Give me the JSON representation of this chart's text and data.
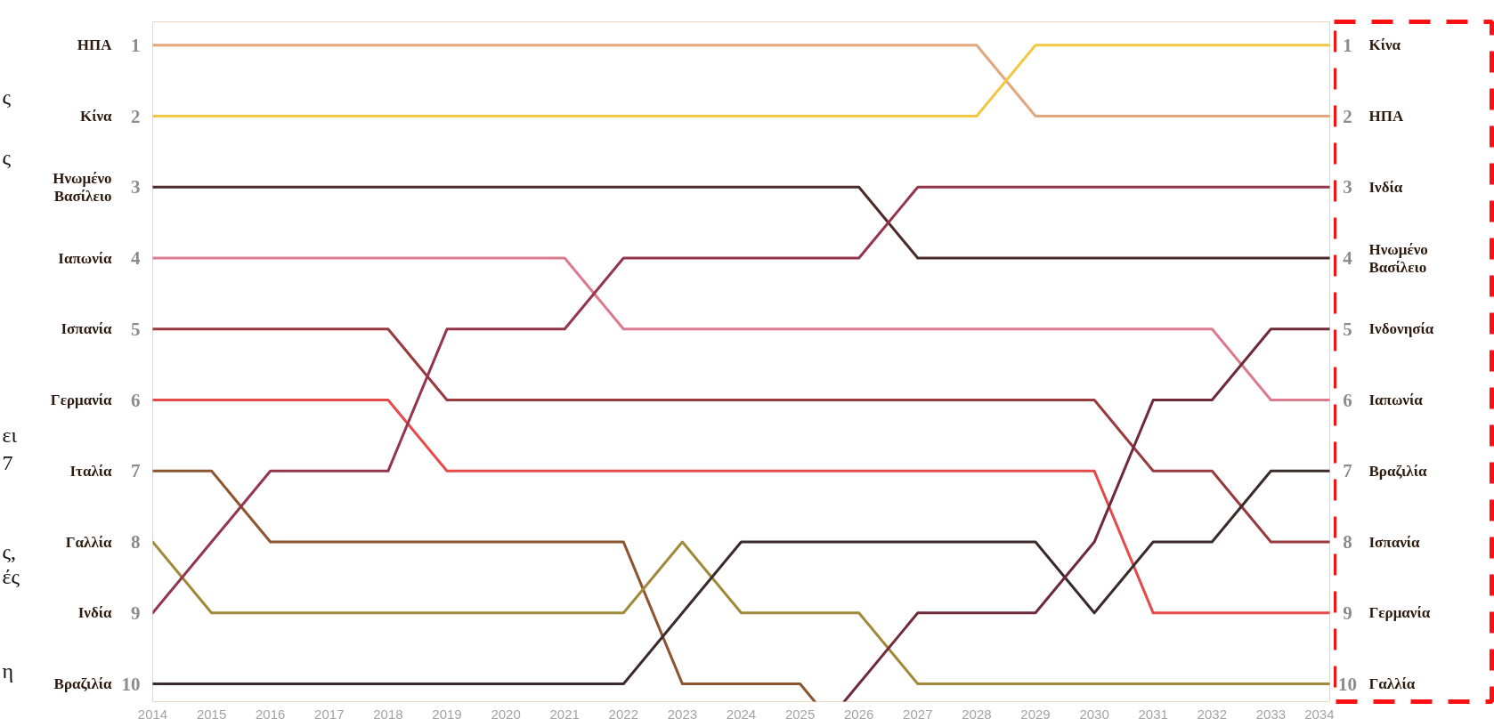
{
  "chart_data": {
    "type": "line",
    "x": [
      2014,
      2015,
      2016,
      2017,
      2018,
      2019,
      2020,
      2021,
      2022,
      2023,
      2024,
      2025,
      2026,
      2027,
      2028,
      2029,
      2030,
      2031,
      2032,
      2033,
      2034
    ],
    "xlim": [
      2014,
      2034
    ],
    "xticks": [
      2014,
      2015,
      2016,
      2017,
      2018,
      2019,
      2020,
      2021,
      2022,
      2023,
      2024,
      2025,
      2026,
      2027,
      2028,
      2029,
      2030,
      2031,
      2032,
      2033,
      2034
    ],
    "ylim": [
      10.25,
      0.67
    ],
    "yticks": [
      1,
      2,
      3,
      4,
      5,
      6,
      7,
      8,
      9,
      10
    ],
    "y2lim": [
      10.25,
      0.67
    ],
    "y2ticks": [
      1,
      2,
      3,
      4,
      5,
      6,
      7,
      8,
      9,
      10
    ],
    "line_style": "solid",
    "series": [
      {
        "name": "ΗΠΑ",
        "color": "#e3a77e",
        "values": [
          1,
          1,
          1,
          1,
          1,
          1,
          1,
          1,
          1,
          1,
          1,
          1,
          1,
          1,
          1,
          2,
          2,
          2,
          2,
          2,
          2
        ]
      },
      {
        "name": "Κίνα",
        "color": "#f2c744",
        "values": [
          2,
          2,
          2,
          2,
          2,
          2,
          2,
          2,
          2,
          2,
          2,
          2,
          2,
          2,
          2,
          1,
          1,
          1,
          1,
          1,
          1
        ]
      },
      {
        "name": "Ηνωμένο Βασίλειο",
        "color": "#4a2a2a",
        "values": [
          3,
          3,
          3,
          3,
          3,
          3,
          3,
          3,
          3,
          3,
          3,
          3,
          3,
          4,
          4,
          4,
          4,
          4,
          4,
          4,
          4
        ]
      },
      {
        "name": "Ιαπωνία",
        "color": "#dc7a8e",
        "values": [
          4,
          4,
          4,
          4,
          4,
          4,
          4,
          4,
          5,
          5,
          5,
          5,
          5,
          5,
          5,
          5,
          5,
          5,
          5,
          6,
          6
        ]
      },
      {
        "name": "Ισπανία",
        "color": "#983a3e",
        "values": [
          5,
          5,
          5,
          5,
          5,
          6,
          6,
          6,
          6,
          6,
          6,
          6,
          6,
          6,
          6,
          6,
          6,
          7,
          7,
          8,
          8
        ]
      },
      {
        "name": "Γερμανία",
        "color": "#e54a4a",
        "values": [
          6,
          6,
          6,
          6,
          6,
          7,
          7,
          7,
          7,
          7,
          7,
          7,
          7,
          7,
          7,
          7,
          7,
          9,
          9,
          9,
          9
        ]
      },
      {
        "name": "Ιταλία",
        "color": "#8c5530",
        "x": [
          2014,
          2015,
          2016,
          2017,
          2018,
          2019,
          2020,
          2021,
          2022,
          2023,
          2024,
          2025,
          2025.25
        ],
        "values": [
          7,
          7,
          8,
          8,
          8,
          8,
          8,
          8,
          8,
          10,
          10,
          10,
          10.25
        ]
      },
      {
        "name": "Γαλλία",
        "color": "#a08a3a",
        "values": [
          8,
          9,
          9,
          9,
          9,
          9,
          9,
          9,
          9,
          8,
          9,
          9,
          9,
          10,
          10,
          10,
          10,
          10,
          10,
          10,
          10
        ]
      },
      {
        "name": "Ινδία",
        "color": "#94354e",
        "values": [
          9,
          8,
          7,
          7,
          7,
          5,
          5,
          5,
          4,
          4,
          4,
          4,
          4,
          3,
          3,
          3,
          3,
          3,
          3,
          3,
          3
        ]
      },
      {
        "name": "Βραζιλία",
        "color": "#3a2a2a",
        "values": [
          10,
          10,
          10,
          10,
          10,
          10,
          10,
          10,
          10,
          9,
          8,
          8,
          8,
          8,
          8,
          8,
          9,
          8,
          8,
          7,
          7
        ]
      },
      {
        "name": "Ινδονησία",
        "color": "#6e2a3a",
        "x": [
          2025.75,
          2026,
          2027,
          2028,
          2029,
          2030,
          2031,
          2032,
          2033,
          2034
        ],
        "values": [
          10.25,
          10,
          9,
          9,
          9,
          8,
          6,
          6,
          5,
          5
        ]
      }
    ],
    "annotations": [
      "ς",
      "ς",
      "ει",
      "7",
      "ς,",
      "ές",
      "η"
    ]
  }
}
